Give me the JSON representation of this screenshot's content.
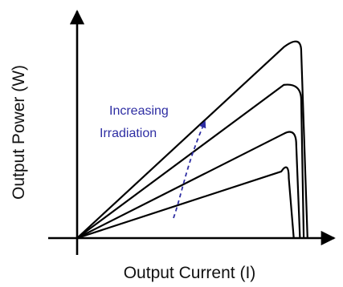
{
  "chart_data": {
    "type": "line",
    "title": "",
    "xlabel": "Output Current (I)",
    "ylabel": "Output Power (W)",
    "xlim": [
      0,
      1
    ],
    "ylim": [
      0,
      1
    ],
    "grid": false,
    "legend": "none",
    "axis_color": "#000000",
    "annotation": {
      "lines": [
        "Increasing",
        "Irradiation"
      ],
      "color": "#2e2ea3",
      "arrow_style": "dashed"
    },
    "series": [
      {
        "values": [
          [
            0,
            0
          ],
          [
            0.82,
            0.3
          ],
          [
            0.85,
            0.27
          ],
          [
            0.87,
            0
          ]
        ]
      },
      {
        "values": [
          [
            0,
            0
          ],
          [
            0.83,
            0.47
          ],
          [
            0.88,
            0.42
          ],
          [
            0.895,
            0
          ]
        ]
      },
      {
        "values": [
          [
            0,
            0
          ],
          [
            0.83,
            0.69
          ],
          [
            0.9,
            0.62
          ],
          [
            0.91,
            0
          ]
        ]
      },
      {
        "values": [
          [
            0,
            0
          ],
          [
            0.83,
            0.86
          ],
          [
            0.9,
            0.84
          ],
          [
            0.925,
            0
          ]
        ]
      }
    ]
  }
}
